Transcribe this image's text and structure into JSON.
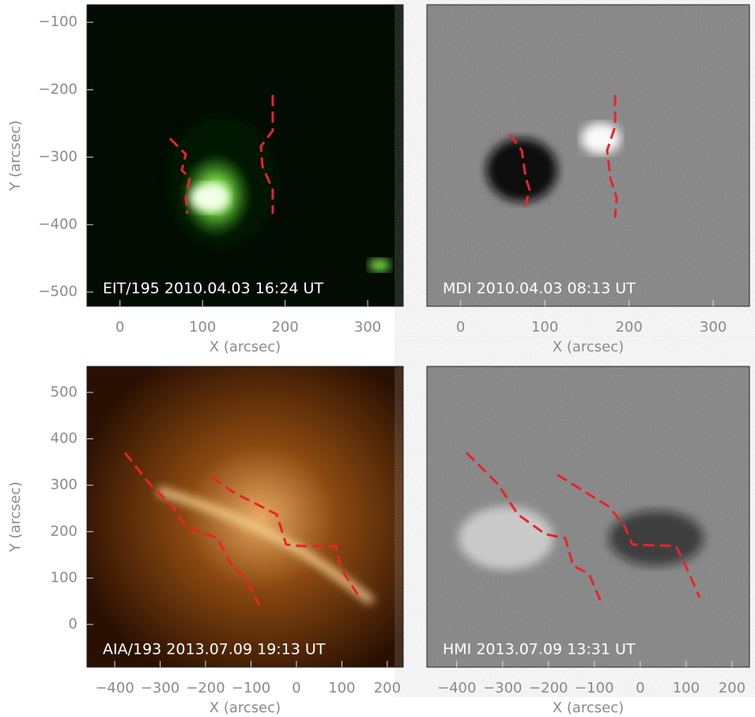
{
  "chart_data": [
    {
      "type": "image",
      "annotation": "EIT/195 2010.04.03  16:24 UT",
      "xlabel": "X (arcsec)",
      "ylabel": "Y (arcsec)",
      "xlim": [
        -40,
        343
      ],
      "xticks": [
        0,
        100,
        200,
        300
      ],
      "ylim": [
        -74,
        -521
      ],
      "yticks": [
        {
          "value": -100,
          "label": "−100"
        },
        {
          "value": -200,
          "label": "−200"
        },
        {
          "value": -300,
          "label": "−300"
        },
        {
          "value": -400,
          "label": "−400"
        },
        {
          "value": -500,
          "label": "−500"
        }
      ]
    },
    {
      "type": "image",
      "annotation": "MDI 2010.04.03  08:13 UT",
      "xlabel": "X (arcsec)",
      "xlim": [
        -40,
        343
      ],
      "xticks": [
        0,
        100,
        200,
        300
      ]
    },
    {
      "type": "image",
      "annotation": "AIA/193 2013.07.09  19:13 UT",
      "xlabel": "X (arcsec)",
      "ylabel": "Y (arcsec)",
      "xlim": [
        -461,
        235
      ],
      "xticks": [
        {
          "value": -400,
          "label": "−400"
        },
        {
          "value": -300,
          "label": "−300"
        },
        {
          "value": -200,
          "label": "−200"
        },
        {
          "value": -100,
          "label": "−100"
        },
        0,
        100,
        200
      ],
      "ylim": [
        556,
        -92
      ],
      "yticks": [
        0,
        100,
        200,
        300,
        400,
        500
      ]
    },
    {
      "type": "image",
      "annotation": "HMI 2013.07.09  13:31 UT",
      "xlabel": "X (arcsec)",
      "xlim": [
        -465,
        238
      ],
      "xticks": [
        {
          "value": -400,
          "label": "−400"
        },
        {
          "value": -300,
          "label": "−300"
        },
        {
          "value": -200,
          "label": "−200"
        },
        {
          "value": -100,
          "label": "−100"
        },
        0,
        100,
        200
      ]
    }
  ]
}
